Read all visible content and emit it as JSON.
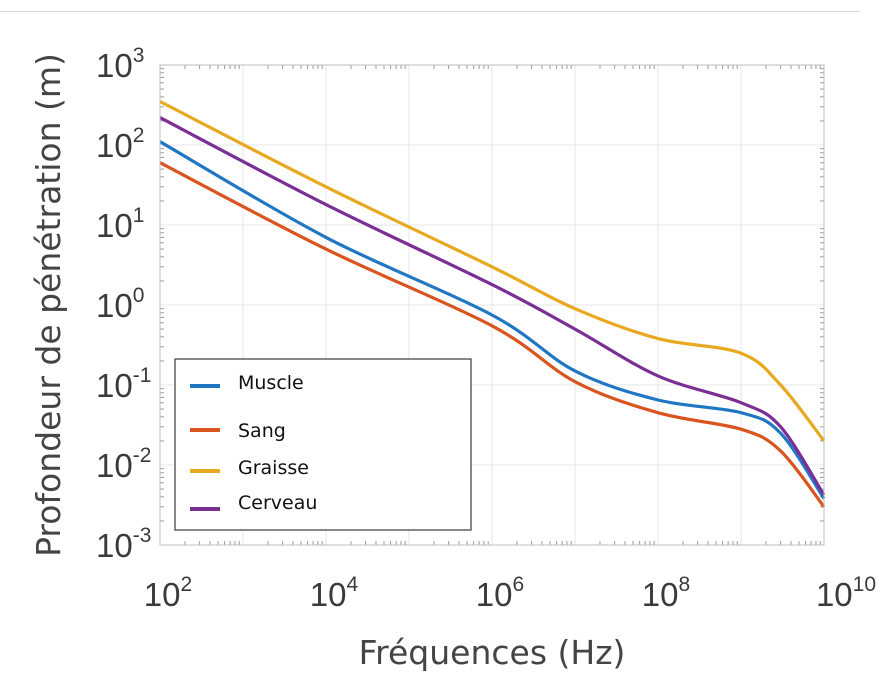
{
  "chart_data": {
    "type": "line",
    "xlabel": "Fréquences (Hz)",
    "ylabel": "Profondeur de pénétration (m)",
    "x_scale": "log",
    "y_scale": "log",
    "xlim": [
      100,
      10000000000
    ],
    "ylim": [
      0.001,
      1000
    ],
    "x_ticks": [
      {
        "value": 100,
        "base": "10",
        "exp": "2"
      },
      {
        "value": 10000,
        "base": "10",
        "exp": "4"
      },
      {
        "value": 1000000,
        "base": "10",
        "exp": "6"
      },
      {
        "value": 100000000,
        "base": "10",
        "exp": "8"
      },
      {
        "value": 10000000000,
        "base": "10",
        "exp": "10"
      }
    ],
    "y_ticks": [
      {
        "value": 1000,
        "base": "10",
        "exp": "3"
      },
      {
        "value": 100,
        "base": "10",
        "exp": "2"
      },
      {
        "value": 10,
        "base": "10",
        "exp": "1"
      },
      {
        "value": 1,
        "base": "10",
        "exp": "0"
      },
      {
        "value": 0.1,
        "base": "10",
        "exp": "-1"
      },
      {
        "value": 0.01,
        "base": "10",
        "exp": "-2"
      },
      {
        "value": 0.001,
        "base": "10",
        "exp": "-3"
      }
    ],
    "grid": true,
    "legend_position": "bottom-left",
    "series": [
      {
        "name": "Muscle",
        "color": "#1f77c4",
        "x": [
          100,
          10000,
          1000000,
          10000000,
          100000000,
          1000000000,
          3000000000,
          10000000000
        ],
        "y": [
          110,
          7,
          0.75,
          0.15,
          0.065,
          0.045,
          0.025,
          0.0038
        ]
      },
      {
        "name": "Sang",
        "color": "#d9541e",
        "x": [
          100,
          10000,
          1000000,
          10000000,
          100000000,
          1000000000,
          3000000000,
          10000000000
        ],
        "y": [
          60,
          5,
          0.55,
          0.11,
          0.045,
          0.028,
          0.015,
          0.003
        ]
      },
      {
        "name": "Graisse",
        "color": "#e8a820",
        "x": [
          100,
          10000,
          1000000,
          10000000,
          100000000,
          1000000000,
          3000000000,
          10000000000
        ],
        "y": [
          350,
          30,
          3.0,
          0.9,
          0.38,
          0.25,
          0.1,
          0.02
        ]
      },
      {
        "name": "Cerveau",
        "color": "#7b2f95",
        "x": [
          100,
          10000,
          1000000,
          10000000,
          100000000,
          1000000000,
          3000000000,
          10000000000
        ],
        "y": [
          220,
          18,
          1.8,
          0.5,
          0.13,
          0.06,
          0.03,
          0.0042
        ]
      }
    ]
  }
}
